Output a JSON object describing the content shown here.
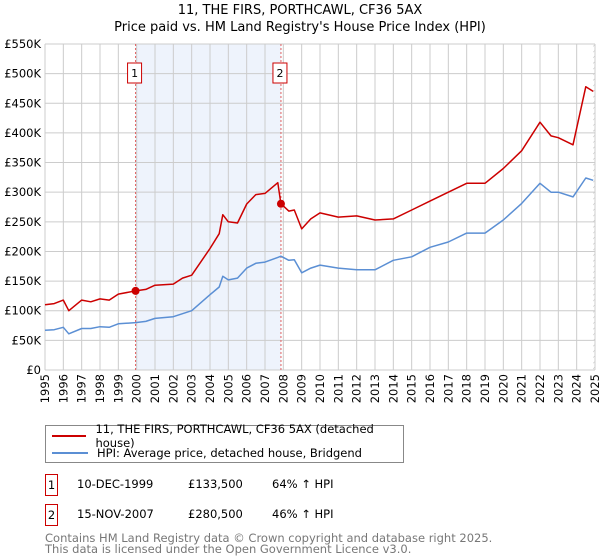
{
  "title": "11, THE FIRS, PORTHCAWL, CF36 5AX",
  "subtitle": "Price paid vs. HM Land Registry's House Price Index (HPI)",
  "colors": {
    "property": "#cc0000",
    "hpi": "#5b8fd4",
    "shade": "#eef3fc",
    "grid": "#cccccc"
  },
  "chart_data": {
    "type": "line",
    "title": "11, THE FIRS, PORTHCAWL, CF36 5AX",
    "xlim": [
      1995,
      2025
    ],
    "ylim": [
      0,
      550000
    ],
    "grid": true,
    "y_ticks": [
      0,
      50000,
      100000,
      150000,
      200000,
      250000,
      300000,
      350000,
      400000,
      450000,
      500000,
      550000
    ],
    "y_tick_labels": [
      "£0",
      "£50K",
      "£100K",
      "£150K",
      "£200K",
      "£250K",
      "£300K",
      "£350K",
      "£400K",
      "£450K",
      "£500K",
      "£550K"
    ],
    "x_ticks": [
      1995,
      1996,
      1997,
      1998,
      1999,
      2000,
      2001,
      2002,
      2003,
      2004,
      2005,
      2006,
      2007,
      2008,
      2009,
      2010,
      2011,
      2012,
      2013,
      2014,
      2015,
      2016,
      2017,
      2018,
      2019,
      2020,
      2021,
      2022,
      2023,
      2024,
      2025
    ],
    "series": [
      {
        "name": "11, THE FIRS, PORTHCAWL, CF36 5AX (detached house)",
        "color": "#cc0000",
        "x": [
          1995,
          1995.5,
          1996,
          1996.3,
          1997,
          1997.5,
          1998,
          1998.5,
          1999,
          1999.94,
          2000.5,
          2001,
          2002,
          2002.5,
          2003,
          2004,
          2004.5,
          2004.7,
          2005,
          2005.5,
          2006,
          2006.5,
          2007,
          2007.7,
          2007.87,
          2008.3,
          2008.6,
          2009,
          2009.5,
          2010,
          2011,
          2012,
          2013,
          2014,
          2015,
          2016,
          2017,
          2018,
          2019,
          2020,
          2021,
          2022,
          2022.6,
          2023,
          2023.8,
          2024.5,
          2024.9
        ],
        "y": [
          110000,
          112000,
          118000,
          100000,
          118000,
          115000,
          120000,
          118000,
          128000,
          133500,
          136000,
          143000,
          145000,
          155000,
          160000,
          205000,
          230000,
          262000,
          250000,
          248000,
          280000,
          296000,
          298000,
          316000,
          280500,
          268000,
          270000,
          238000,
          255000,
          265000,
          258000,
          260000,
          253000,
          255000,
          270000,
          285000,
          300000,
          315000,
          315000,
          340000,
          370000,
          418000,
          395000,
          392000,
          380000,
          478000,
          470000
        ]
      },
      {
        "name": "HPI: Average price, detached house, Bridgend",
        "color": "#5b8fd4",
        "x": [
          1995,
          1995.5,
          1996,
          1996.3,
          1997,
          1997.5,
          1998,
          1998.5,
          1999,
          1999.94,
          2000.5,
          2001,
          2002,
          2002.5,
          2003,
          2004,
          2004.5,
          2004.7,
          2005,
          2005.5,
          2006,
          2006.5,
          2007,
          2007.7,
          2007.87,
          2008.3,
          2008.6,
          2009,
          2009.5,
          2010,
          2011,
          2012,
          2013,
          2014,
          2015,
          2016,
          2017,
          2018,
          2019,
          2020,
          2021,
          2022,
          2022.6,
          2023,
          2023.8,
          2024.5,
          2024.9
        ],
        "y": [
          67000,
          68000,
          72000,
          61000,
          70000,
          70000,
          73000,
          72000,
          78000,
          80000,
          82000,
          87000,
          90000,
          95000,
          100000,
          127000,
          140000,
          158000,
          152000,
          155000,
          172000,
          180000,
          182000,
          190000,
          192000,
          185000,
          186000,
          164000,
          172000,
          177000,
          172000,
          169000,
          169000,
          185000,
          191000,
          207000,
          216000,
          231000,
          231000,
          253000,
          281000,
          315000,
          300000,
          300000,
          292000,
          324000,
          320000
        ]
      }
    ],
    "sales": [
      {
        "label": "1",
        "x": 1999.94,
        "y": 133500,
        "date": "10-DEC-1999",
        "price": "£133,500",
        "hpi": "64% ↑ HPI"
      },
      {
        "label": "2",
        "x": 2007.87,
        "y": 280500,
        "date": "15-NOV-2007",
        "price": "£280,500",
        "hpi": "46% ↑ HPI"
      }
    ],
    "legend_placement": "bottom"
  },
  "footer": {
    "line1": "Contains HM Land Registry data © Crown copyright and database right 2025.",
    "line2": "This data is licensed under the Open Government Licence v3.0."
  }
}
